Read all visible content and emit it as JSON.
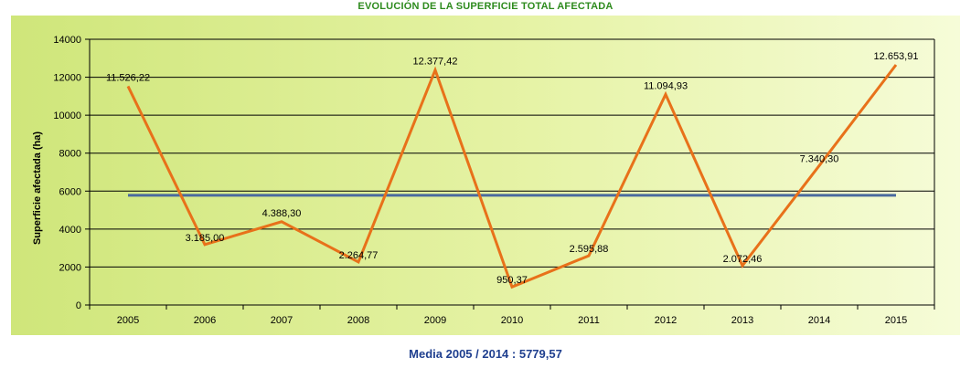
{
  "chart_data": {
    "type": "line",
    "title": "EVOLUCIÓN DE LA SUPERFICIE TOTAL AFECTADA",
    "ylabel": "Superficie afectada (ha)",
    "xlabel": "",
    "categories": [
      "2005",
      "2006",
      "2007",
      "2008",
      "2009",
      "2010",
      "2011",
      "2012",
      "2013",
      "2014",
      "2015"
    ],
    "ylim": [
      0,
      14000
    ],
    "yticks": [
      0,
      2000,
      4000,
      6000,
      8000,
      10000,
      12000,
      14000
    ],
    "grid": true,
    "legend": "none",
    "series": [
      {
        "values": [
          11526.22,
          3185.0,
          4388.3,
          2264.77,
          12377.42,
          950.37,
          2595.88,
          11094.93,
          2072.46,
          7340.3,
          12653.91
        ],
        "labels": [
          "11.526,22",
          "3.185,00",
          "4.388,30",
          "2.264,77",
          "12.377,42",
          "950,37",
          "2.595,88",
          "11.094,93",
          "2.072,46",
          "7.340,30",
          "12.653,91"
        ],
        "color": "#e8711a"
      },
      {
        "values": [
          5779.57,
          5779.57,
          5779.57,
          5779.57,
          5779.57,
          5779.57,
          5779.57,
          5779.57,
          5779.57,
          5779.57,
          5779.57
        ],
        "color": "#4a6a9e"
      }
    ],
    "footer": "Media 2005 / 2014 : 5779,57"
  },
  "colors": {
    "title": "#2e8b1e",
    "footer": "#1f3f8f",
    "series_line": "#e8711a",
    "mean_line": "#4a6a9e",
    "background_left": "#cfe67a",
    "background_right": "#f4fbd0"
  }
}
